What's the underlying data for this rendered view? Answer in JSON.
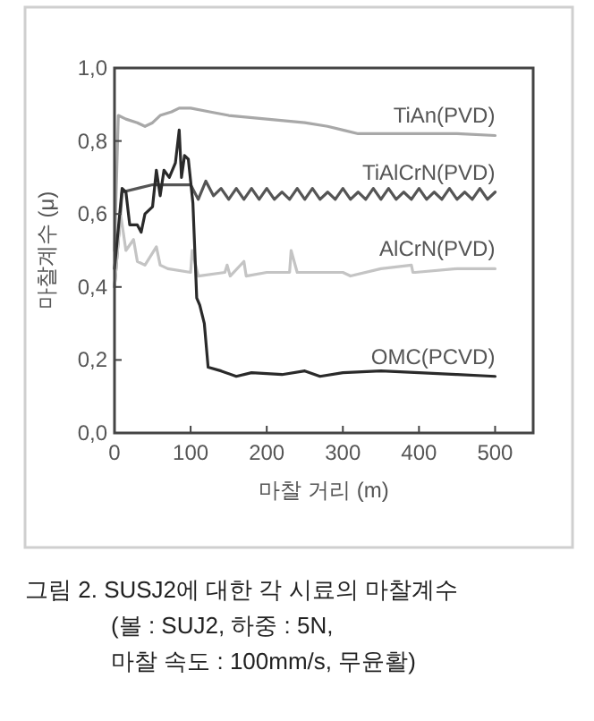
{
  "chart_data": {
    "type": "line",
    "xlabel": "마찰 거리 (m)",
    "ylabel": "마찰계수 (μ)",
    "xlim": [
      0,
      550
    ],
    "ylim": [
      0,
      1.0
    ],
    "xticks": [
      0,
      100,
      200,
      300,
      400,
      500
    ],
    "yticks": [
      {
        "value": 0,
        "label": "0,0"
      },
      {
        "value": 0.2,
        "label": "0,2"
      },
      {
        "value": 0.4,
        "label": "0,4"
      },
      {
        "value": 0.6,
        "label": "0,6"
      },
      {
        "value": 0.8,
        "label": "0,8"
      },
      {
        "value": 1.0,
        "label": "1,0"
      }
    ],
    "line_style": "solid",
    "series": [
      {
        "name": "TiAn(PVD)",
        "color": "#a8a8a8",
        "x": [
          0,
          5,
          15,
          30,
          40,
          50,
          60,
          75,
          85,
          100,
          125,
          150,
          200,
          250,
          280,
          300,
          320,
          350,
          400,
          450,
          500
        ],
        "values": [
          0.5,
          0.87,
          0.86,
          0.85,
          0.84,
          0.85,
          0.87,
          0.88,
          0.89,
          0.89,
          0.88,
          0.87,
          0.86,
          0.85,
          0.84,
          0.83,
          0.82,
          0.82,
          0.82,
          0.82,
          0.815
        ]
      },
      {
        "name": "TiAlCrN(PVD)",
        "color": "#555555",
        "x": [
          0,
          10,
          30,
          50,
          70,
          90,
          100,
          110,
          120,
          130,
          140,
          150,
          160,
          170,
          180,
          190,
          200,
          210,
          220,
          230,
          240,
          250,
          260,
          270,
          280,
          290,
          300,
          310,
          320,
          330,
          340,
          350,
          360,
          370,
          380,
          390,
          400,
          410,
          420,
          430,
          440,
          450,
          460,
          470,
          480,
          490,
          500
        ],
        "values": [
          0.4,
          0.66,
          0.67,
          0.68,
          0.68,
          0.68,
          0.68,
          0.64,
          0.69,
          0.65,
          0.67,
          0.64,
          0.67,
          0.64,
          0.67,
          0.64,
          0.67,
          0.64,
          0.66,
          0.64,
          0.67,
          0.64,
          0.67,
          0.64,
          0.66,
          0.64,
          0.67,
          0.64,
          0.66,
          0.64,
          0.67,
          0.64,
          0.67,
          0.64,
          0.66,
          0.64,
          0.67,
          0.64,
          0.66,
          0.64,
          0.67,
          0.64,
          0.66,
          0.64,
          0.67,
          0.64,
          0.66
        ]
      },
      {
        "name": "AlCrN(PVD)",
        "color": "#c4c4c4",
        "x": [
          0,
          8,
          15,
          25,
          30,
          40,
          55,
          60,
          70,
          100,
          102,
          110,
          145,
          148,
          152,
          170,
          173,
          200,
          230,
          232,
          240,
          300,
          310,
          350,
          390,
          392,
          395,
          450,
          500
        ],
        "values": [
          0.4,
          0.6,
          0.5,
          0.53,
          0.47,
          0.46,
          0.51,
          0.46,
          0.45,
          0.44,
          0.5,
          0.43,
          0.44,
          0.46,
          0.43,
          0.47,
          0.43,
          0.44,
          0.44,
          0.5,
          0.44,
          0.44,
          0.43,
          0.45,
          0.46,
          0.44,
          0.44,
          0.45,
          0.45
        ]
      },
      {
        "name": "OMC(PCVD)",
        "color": "#2a2a2a",
        "x": [
          0,
          10,
          15,
          20,
          30,
          35,
          40,
          50,
          55,
          60,
          65,
          72,
          80,
          85,
          88,
          92,
          97,
          103,
          108,
          112,
          118,
          123,
          140,
          160,
          180,
          220,
          250,
          270,
          300,
          350,
          400,
          450,
          500
        ],
        "values": [
          0.45,
          0.67,
          0.66,
          0.57,
          0.57,
          0.55,
          0.6,
          0.62,
          0.72,
          0.65,
          0.72,
          0.7,
          0.74,
          0.83,
          0.7,
          0.76,
          0.75,
          0.63,
          0.37,
          0.35,
          0.3,
          0.18,
          0.17,
          0.155,
          0.165,
          0.16,
          0.17,
          0.155,
          0.165,
          0.17,
          0.165,
          0.16,
          0.155
        ]
      }
    ],
    "annotations": [
      "그림 2. SUSJ2에 대한 각 시료의 마찰계수",
      "(볼 : SUJ2, 하중 : 5N,",
      "마찰 속도 : 100mm/s, 무윤활)"
    ]
  }
}
